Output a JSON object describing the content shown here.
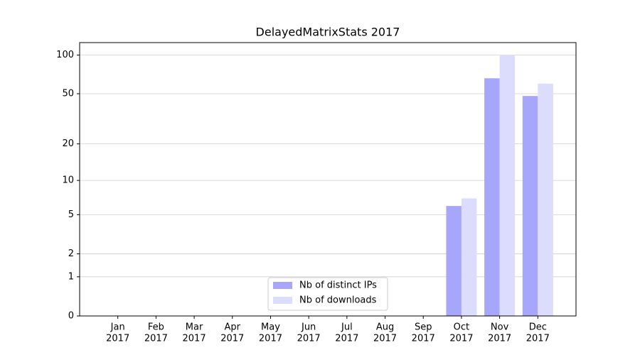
{
  "chart_data": {
    "type": "bar",
    "title": "DelayedMatrixStats 2017",
    "categories": [
      [
        "Jan",
        "2017"
      ],
      [
        "Feb",
        "2017"
      ],
      [
        "Mar",
        "2017"
      ],
      [
        "Apr",
        "2017"
      ],
      [
        "May",
        "2017"
      ],
      [
        "Jun",
        "2017"
      ],
      [
        "Jul",
        "2017"
      ],
      [
        "Aug",
        "2017"
      ],
      [
        "Sep",
        "2017"
      ],
      [
        "Oct",
        "2017"
      ],
      [
        "Nov",
        "2017"
      ],
      [
        "Dec",
        "2017"
      ]
    ],
    "series": [
      {
        "name": "Nb of distinct IPs",
        "color": "#a6a6fb",
        "values": [
          0,
          0,
          0,
          0,
          0,
          0,
          0,
          0,
          0,
          6,
          66,
          48
        ]
      },
      {
        "name": "Nb of downloads",
        "color": "#dcdcfc",
        "values": [
          0,
          0,
          0,
          0,
          0,
          0,
          0,
          0,
          0,
          7,
          100,
          60
        ]
      }
    ],
    "y_scale": "log1p",
    "ylim": [
      0,
      125
    ],
    "yticks": [
      0,
      1,
      2,
      5,
      10,
      20,
      50,
      100
    ],
    "grid": true,
    "legend": "lower center"
  }
}
